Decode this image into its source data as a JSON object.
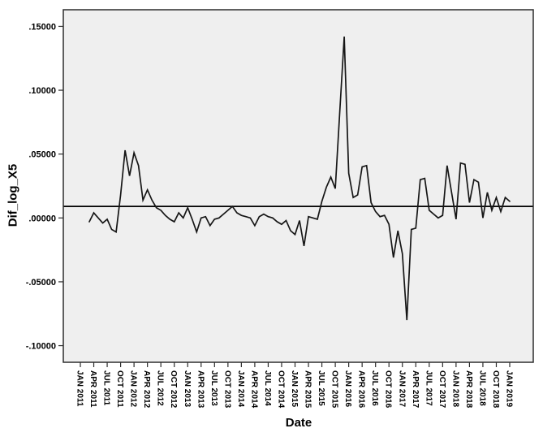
{
  "chart_data": {
    "type": "line",
    "title": "",
    "xlabel": "Date",
    "ylabel": "Dif_log_X5",
    "legend": "none",
    "grid": false,
    "plot_bg": "#efefef",
    "line_color": "#161616",
    "frame_color": "#2d2d2d",
    "reference_line_color": "#000000",
    "reference_line_value": 0.009,
    "ylim": [
      -0.113,
      0.163
    ],
    "y_ticks": [
      {
        "value": 0.15,
        "label": ".15000"
      },
      {
        "value": 0.1,
        "label": ".10000"
      },
      {
        "value": 0.05,
        "label": ".05000"
      },
      {
        "value": 0.0,
        "label": ".00000"
      },
      {
        "value": -0.05,
        "label": "-.05000"
      },
      {
        "value": -0.1,
        "label": "-.10000"
      }
    ],
    "x_tick_step_months": 3,
    "x_axis_months_span": 96,
    "x_tick_labels": [
      "JAN 2011",
      "APR 2011",
      "JUL 2011",
      "OCT 2011",
      "JAN 2012",
      "APR 2012",
      "JUL 2012",
      "OCT 2012",
      "JAN 2013",
      "APR 2013",
      "JUL 2013",
      "OCT 2013",
      "JAN 2014",
      "APR 2014",
      "JUL 2014",
      "OCT 2014",
      "JAN 2015",
      "APR 2015",
      "JUL 2015",
      "OCT 2015",
      "JAN 2016",
      "APR 2016",
      "JUL 2016",
      "OCT 2016",
      "JAN 2017",
      "APR 2017",
      "JUL 2017",
      "OCT 2017",
      "JAN 2018",
      "APR 2018",
      "JUL 2018",
      "OCT 2018",
      "JAN 2019"
    ],
    "series": [
      {
        "name": "Dif_log_X5",
        "frequency": "monthly",
        "start_month": "MAR 2011",
        "start_month_index": 2,
        "end_month": "JAN 2019",
        "values": [
          -0.003,
          0.004,
          0.0,
          -0.004,
          -0.001,
          -0.009,
          -0.011,
          0.018,
          0.053,
          0.033,
          0.051,
          0.041,
          0.014,
          0.022,
          0.014,
          0.008,
          0.006,
          0.002,
          -0.001,
          -0.003,
          0.004,
          0.0,
          0.008,
          -0.001,
          -0.011,
          0.0,
          0.001,
          -0.006,
          -0.001,
          0.0,
          0.003,
          0.006,
          0.009,
          0.004,
          0.002,
          0.001,
          0.0,
          -0.006,
          0.001,
          0.003,
          0.001,
          0.0,
          -0.003,
          -0.005,
          -0.002,
          -0.01,
          -0.013,
          -0.002,
          -0.022,
          0.001,
          0.0,
          -0.001,
          0.013,
          0.024,
          0.032,
          0.023,
          0.083,
          0.142,
          0.035,
          0.016,
          0.018,
          0.04,
          0.041,
          0.012,
          0.005,
          0.001,
          0.002,
          -0.005,
          -0.031,
          -0.01,
          -0.028,
          -0.08,
          -0.009,
          -0.008,
          0.03,
          0.031,
          0.006,
          0.003,
          0.0,
          0.002,
          0.041,
          0.02,
          -0.001,
          0.043,
          0.042,
          0.012,
          0.03,
          0.028,
          0.0,
          0.02,
          0.006,
          0.016,
          0.005,
          0.016,
          0.013
        ]
      }
    ]
  }
}
